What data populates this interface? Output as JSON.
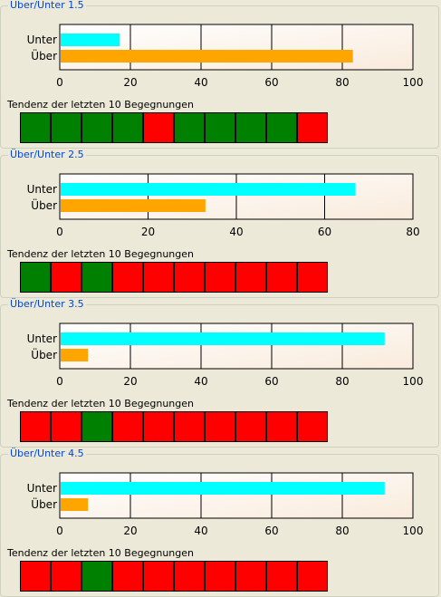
{
  "colors": {
    "unter": "#00ffff",
    "ueber": "#ffa500",
    "win": "#008000",
    "loss": "#ff0000",
    "title": "#0046d5"
  },
  "sections": [
    {
      "title": "Über/Unter 1.5",
      "trend_label": "Tendenz der letzten 10 Begegnungen",
      "trend": [
        "win",
        "win",
        "win",
        "win",
        "loss",
        "win",
        "win",
        "win",
        "win",
        "loss"
      ],
      "chart_data": {
        "type": "bar",
        "orientation": "horizontal",
        "categories": [
          "Unter",
          "Über"
        ],
        "values": [
          17,
          83
        ],
        "xlim": [
          0,
          100
        ],
        "ticks": [
          "0",
          "20",
          "40",
          "60",
          "80",
          "100"
        ]
      }
    },
    {
      "title": "Über/Unter 2.5",
      "trend_label": "Tendenz der letzten 10 Begegnungen",
      "trend": [
        "win",
        "loss",
        "win",
        "loss",
        "loss",
        "loss",
        "loss",
        "loss",
        "loss",
        "loss"
      ],
      "chart_data": {
        "type": "bar",
        "orientation": "horizontal",
        "categories": [
          "Unter",
          "Über"
        ],
        "values": [
          67,
          33
        ],
        "xlim": [
          0,
          80
        ],
        "ticks": [
          "0",
          "20",
          "40",
          "60",
          "80"
        ]
      }
    },
    {
      "title": "Über/Unter 3.5",
      "trend_label": "Tendenz der letzten 10 Begegnungen",
      "trend": [
        "loss",
        "loss",
        "win",
        "loss",
        "loss",
        "loss",
        "loss",
        "loss",
        "loss",
        "loss"
      ],
      "chart_data": {
        "type": "bar",
        "orientation": "horizontal",
        "categories": [
          "Unter",
          "Über"
        ],
        "values": [
          92,
          8
        ],
        "xlim": [
          0,
          100
        ],
        "ticks": [
          "0",
          "20",
          "40",
          "60",
          "80",
          "100"
        ]
      }
    },
    {
      "title": "Über/Unter 4.5",
      "trend_label": "Tendenz der letzten 10 Begegnungen",
      "trend": [
        "loss",
        "loss",
        "win",
        "loss",
        "loss",
        "loss",
        "loss",
        "loss",
        "loss",
        "loss"
      ],
      "chart_data": {
        "type": "bar",
        "orientation": "horizontal",
        "categories": [
          "Unter",
          "Über"
        ],
        "values": [
          92,
          8
        ],
        "xlim": [
          0,
          100
        ],
        "ticks": [
          "0",
          "20",
          "40",
          "60",
          "80",
          "100"
        ]
      }
    }
  ]
}
